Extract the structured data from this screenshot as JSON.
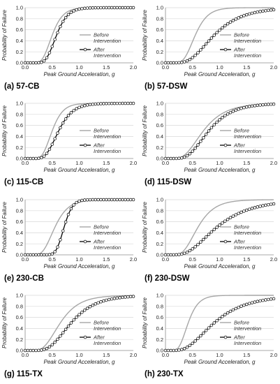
{
  "legend": {
    "before": "Before Intervention",
    "after": "After Intervention"
  },
  "styles": {
    "before_color": "#a6a6a6",
    "after_color": "#000000",
    "grid_color": "#d9d9d9"
  },
  "chart_data": [
    {
      "type": "line",
      "caption": "(a) 57-CB",
      "xlabel": "Peak Ground Acceleration, g",
      "ylabel": "Probability of Failure",
      "xlim": [
        0,
        2
      ],
      "ylim": [
        0,
        1
      ],
      "xticks": [
        "0.0",
        "0.5",
        "1.0",
        "1.5",
        "2.0"
      ],
      "yticks": [
        "0.0",
        "0.2",
        "0.4",
        "0.6",
        "0.8",
        "1.0"
      ],
      "legend_position": "right",
      "grid": true,
      "series": [
        {
          "name": "Before Intervention",
          "median": 0.5,
          "beta": 0.31,
          "markers": false
        },
        {
          "name": "After Intervention",
          "median": 0.58,
          "beta": 0.28,
          "markers": true
        }
      ]
    },
    {
      "type": "line",
      "caption": "(b) 57-DSW",
      "xlabel": "Peak Ground Acceleration, g",
      "ylabel": "Probability of Failure",
      "xlim": [
        0,
        2
      ],
      "ylim": [
        0,
        1
      ],
      "xticks": [
        "0.0",
        "0.5",
        "1.0",
        "1.5",
        "2.0"
      ],
      "yticks": [
        "0.0",
        "0.2",
        "0.4",
        "0.6",
        "0.8",
        "1.0"
      ],
      "legend_position": "right",
      "grid": true,
      "series": [
        {
          "name": "Before Intervention",
          "median": 0.55,
          "beta": 0.33,
          "markers": false
        },
        {
          "name": "After Intervention",
          "median": 0.9,
          "beta": 0.45,
          "markers": true
        }
      ]
    },
    {
      "type": "line",
      "caption": "(c) 115-CB",
      "xlabel": "Peak Ground Acceleration, g",
      "ylabel": "Probability of Failure",
      "xlim": [
        0,
        2
      ],
      "ylim": [
        0,
        1
      ],
      "xticks": [
        "0.0",
        "0.5",
        "1.0",
        "1.5",
        "2.0"
      ],
      "yticks": [
        "0.0",
        "0.2",
        "0.4",
        "0.6",
        "0.8",
        "1.0"
      ],
      "legend_position": "right",
      "grid": true,
      "series": [
        {
          "name": "Before Intervention",
          "median": 0.5,
          "beta": 0.31,
          "markers": false
        },
        {
          "name": "After Intervention",
          "median": 0.62,
          "beta": 0.33,
          "markers": true
        }
      ]
    },
    {
      "type": "line",
      "caption": "(d) 115-DSW",
      "xlabel": "Peak Ground Acceleration, g",
      "ylabel": "Probability of Failure",
      "xlim": [
        0,
        2
      ],
      "ylim": [
        0,
        1
      ],
      "xticks": [
        "0.0",
        "0.5",
        "1.0",
        "1.5",
        "2.0"
      ],
      "yticks": [
        "0.0",
        "0.2",
        "0.4",
        "0.6",
        "0.8",
        "1.0"
      ],
      "legend_position": "right",
      "grid": true,
      "series": [
        {
          "name": "Before Intervention",
          "median": 0.7,
          "beta": 0.45,
          "markers": false
        },
        {
          "name": "After Intervention",
          "median": 0.8,
          "beta": 0.42,
          "markers": true
        }
      ]
    },
    {
      "type": "line",
      "caption": "(e) 230-CB",
      "xlabel": "Peak Ground Acceleration, g",
      "ylabel": "Probability of Failure",
      "xlim": [
        0,
        2
      ],
      "ylim": [
        0,
        1
      ],
      "xticks": [
        "0.0",
        "0.5",
        "1.0",
        "1.5",
        "2.0"
      ],
      "yticks": [
        "0.0",
        "0.2",
        "0.4",
        "0.6",
        "0.8",
        "1.0"
      ],
      "legend_position": "right",
      "grid": true,
      "series": [
        {
          "name": "Before Intervention",
          "median": 0.55,
          "beta": 0.35,
          "markers": false
        },
        {
          "name": "After Intervention",
          "median": 0.72,
          "beta": 0.17,
          "markers": true
        }
      ]
    },
    {
      "type": "line",
      "caption": "(f) 230-DSW",
      "xlabel": "Peak Ground Acceleration, g",
      "ylabel": "Probability of Failure",
      "xlim": [
        0,
        2
      ],
      "ylim": [
        0,
        1
      ],
      "xticks": [
        "0.0",
        "0.5",
        "1.0",
        "1.5",
        "2.0"
      ],
      "yticks": [
        "0.0",
        "0.2",
        "0.4",
        "0.6",
        "0.8",
        "1.0"
      ],
      "legend_position": "right",
      "grid": true,
      "series": [
        {
          "name": "Before Intervention",
          "median": 0.6,
          "beta": 0.4,
          "markers": false
        },
        {
          "name": "After Intervention",
          "median": 0.95,
          "beta": 0.52,
          "markers": true
        }
      ]
    },
    {
      "type": "line",
      "caption": "(g) 115-TX",
      "xlabel": "Peak Ground Acceleration, g",
      "ylabel": "Probability of Failure",
      "xlim": [
        0,
        2
      ],
      "ylim": [
        0,
        1
      ],
      "xticks": [
        "0.0",
        "0.5",
        "1.0",
        "1.5",
        "2.0"
      ],
      "yticks": [
        "0.0",
        "0.2",
        "0.4",
        "0.6",
        "0.8",
        "1.0"
      ],
      "legend_position": "right",
      "grid": true,
      "series": [
        {
          "name": "Before Intervention",
          "median": 0.65,
          "beta": 0.42,
          "markers": false
        },
        {
          "name": "After Intervention",
          "median": 0.85,
          "beta": 0.42,
          "markers": true
        }
      ]
    },
    {
      "type": "line",
      "caption": "(h) 230-TX",
      "xlabel": "Peak Ground Acceleration, g",
      "ylabel": "Probability of Failure",
      "xlim": [
        0,
        2
      ],
      "ylim": [
        0,
        1
      ],
      "xticks": [
        "0.0",
        "0.5",
        "1.0",
        "1.5",
        "2.0"
      ],
      "yticks": [
        "0.0",
        "0.2",
        "0.4",
        "0.6",
        "0.8",
        "1.0"
      ],
      "legend_position": "right",
      "grid": true,
      "series": [
        {
          "name": "Before Intervention",
          "median": 0.42,
          "beta": 0.35,
          "markers": false
        },
        {
          "name": "After Intervention",
          "median": 0.9,
          "beta": 0.52,
          "markers": true
        }
      ]
    }
  ]
}
